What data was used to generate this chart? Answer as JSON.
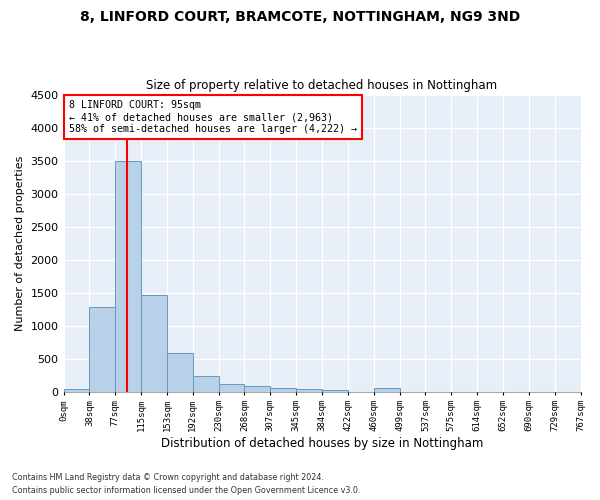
{
  "title1": "8, LINFORD COURT, BRAMCOTE, NOTTINGHAM, NG9 3ND",
  "title2": "Size of property relative to detached houses in Nottingham",
  "xlabel": "Distribution of detached houses by size in Nottingham",
  "ylabel": "Number of detached properties",
  "bin_labels": [
    "0sqm",
    "38sqm",
    "77sqm",
    "115sqm",
    "153sqm",
    "192sqm",
    "230sqm",
    "268sqm",
    "307sqm",
    "345sqm",
    "384sqm",
    "422sqm",
    "460sqm",
    "499sqm",
    "537sqm",
    "575sqm",
    "614sqm",
    "652sqm",
    "690sqm",
    "729sqm",
    "767sqm"
  ],
  "bar_values": [
    45,
    1280,
    3500,
    1470,
    580,
    240,
    110,
    80,
    50,
    40,
    30,
    0,
    50,
    0,
    0,
    0,
    0,
    0,
    0,
    0
  ],
  "bar_color": "#b8d0e8",
  "bar_edge_color": "#6699bb",
  "vline_color": "red",
  "annotation_text": "8 LINFORD COURT: 95sqm\n← 41% of detached houses are smaller (2,963)\n58% of semi-detached houses are larger (4,222) →",
  "ylim_max": 4500,
  "yticks": [
    0,
    500,
    1000,
    1500,
    2000,
    2500,
    3000,
    3500,
    4000,
    4500
  ],
  "footer1": "Contains HM Land Registry data © Crown copyright and database right 2024.",
  "footer2": "Contains public sector information licensed under the Open Government Licence v3.0.",
  "bg_color": "#ffffff",
  "plot_bg_color": "#e8eef8"
}
